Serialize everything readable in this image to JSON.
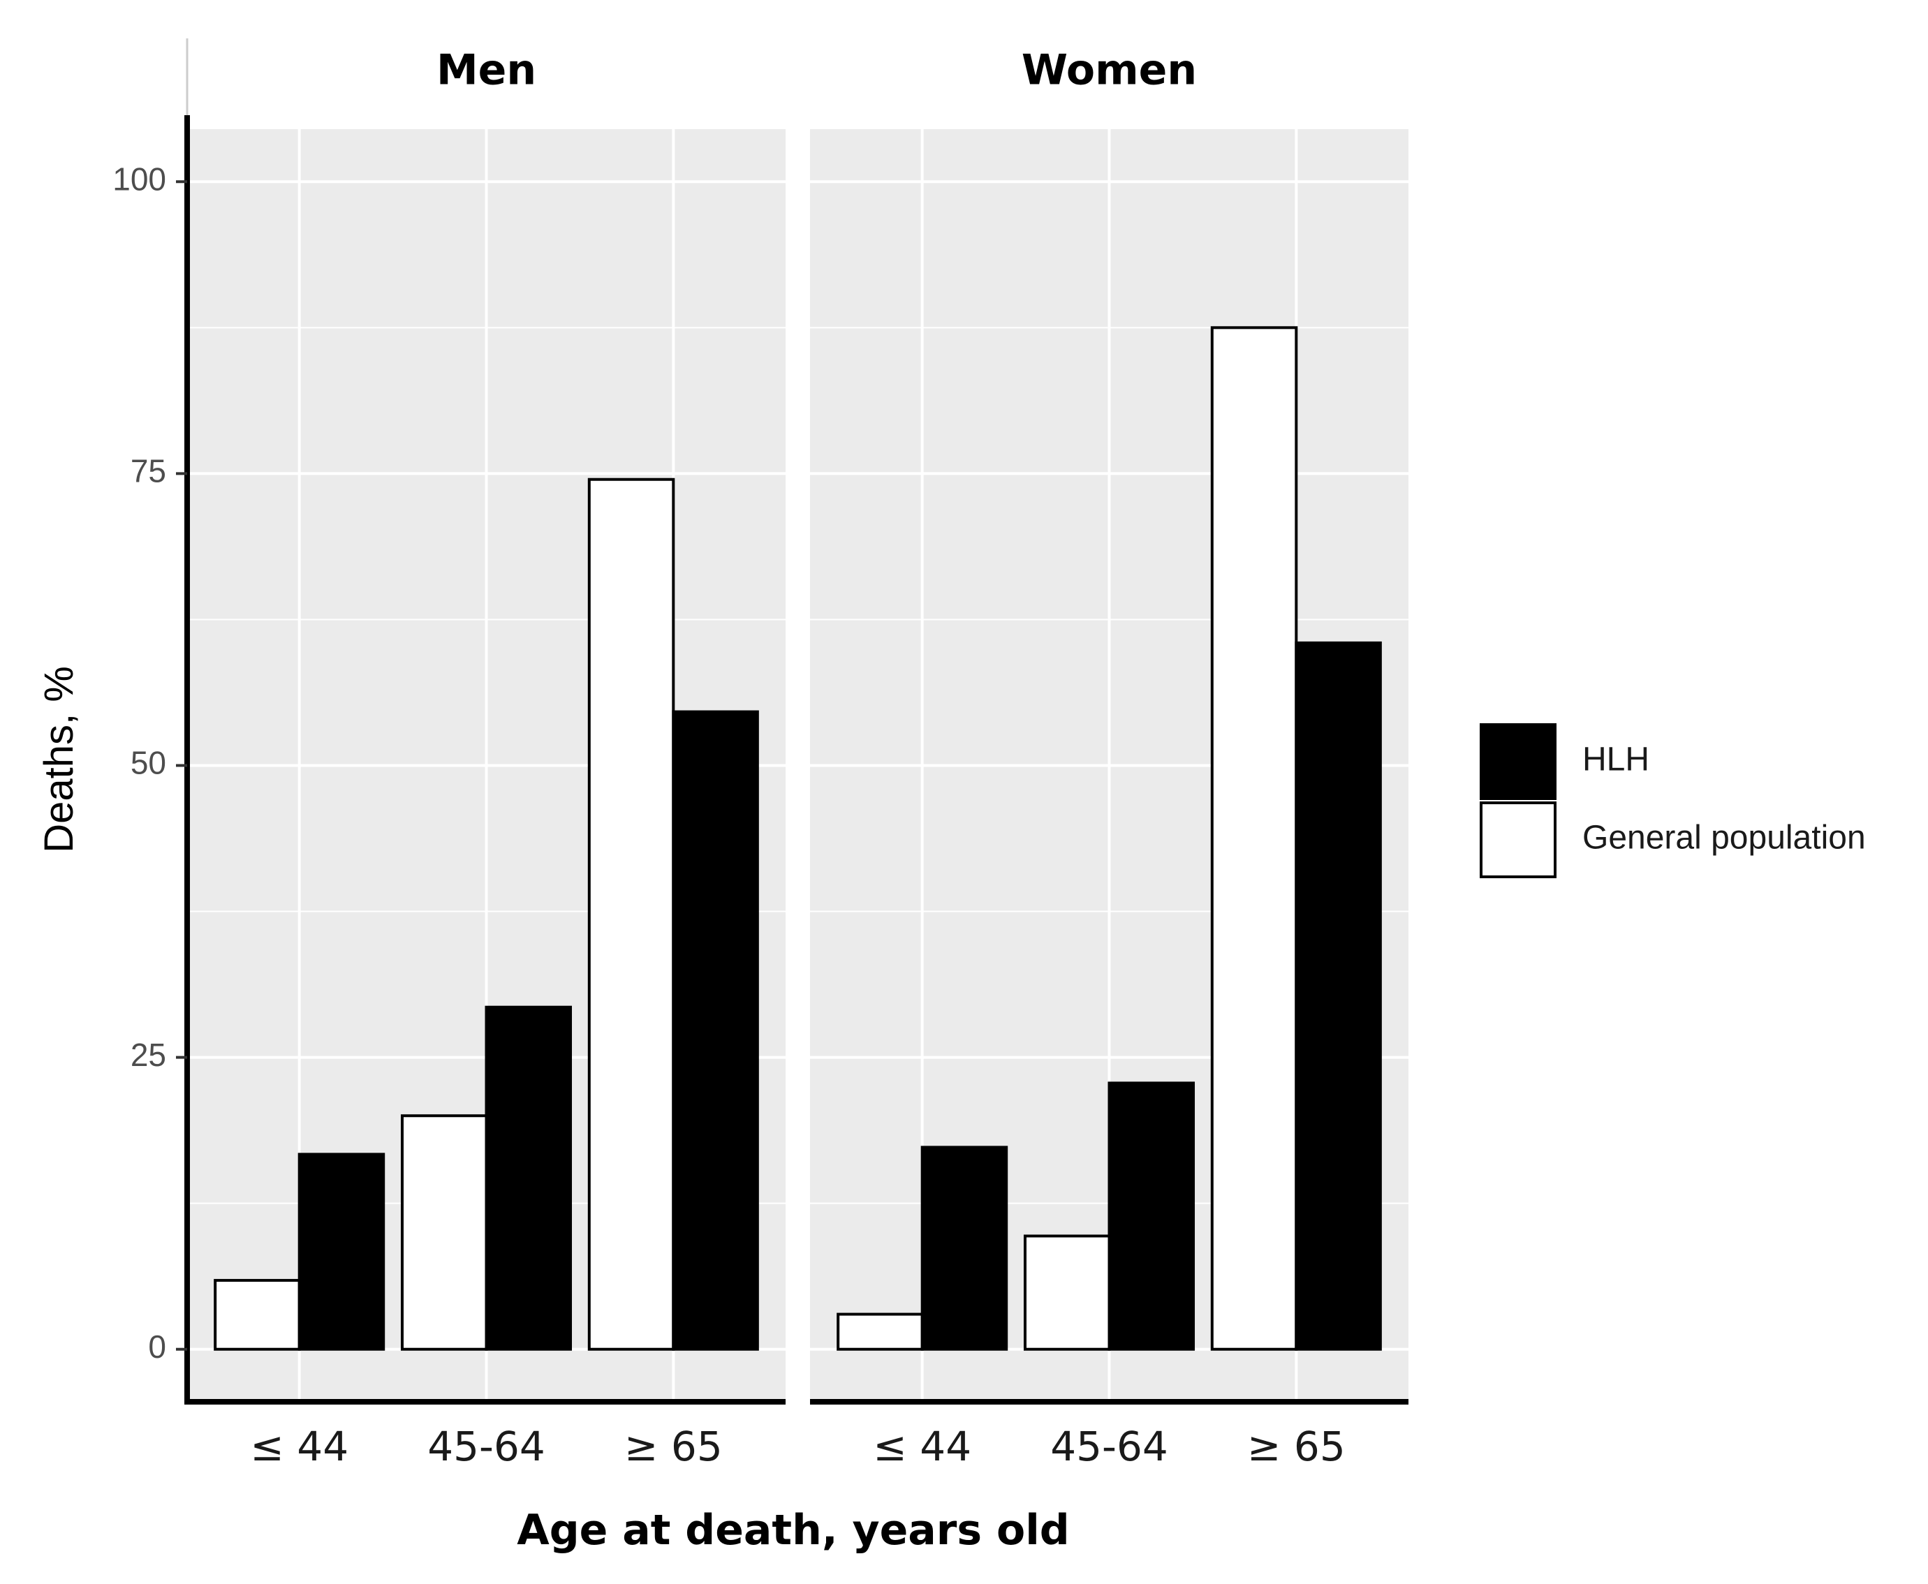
{
  "chart_data": {
    "type": "bar",
    "facets": [
      "Men",
      "Women"
    ],
    "categories": [
      "≤ 44",
      "45-64",
      "≥ 65"
    ],
    "series": [
      {
        "name": "General population",
        "color": "#ffffff",
        "values": {
          "Men": [
            5.9,
            20.0,
            74.5
          ],
          "Women": [
            3.0,
            9.7,
            87.5
          ]
        }
      },
      {
        "name": "HLH",
        "color": "#000000",
        "values": {
          "Men": [
            16.7,
            29.3,
            54.6
          ],
          "Women": [
            17.3,
            22.8,
            60.5
          ]
        }
      }
    ],
    "legend": [
      {
        "label": "HLH",
        "color": "#000000"
      },
      {
        "label": "General population",
        "color": "#ffffff"
      }
    ],
    "xlabel": "Age at death, years old",
    "ylabel": "Deaths, %",
    "yticks": [
      0,
      25,
      50,
      75,
      100
    ],
    "ylim": [
      -4.5,
      104.5
    ],
    "grid": true,
    "legend_position": "right",
    "panel_color": "#ebebeb",
    "grid_color": "#ffffff"
  }
}
